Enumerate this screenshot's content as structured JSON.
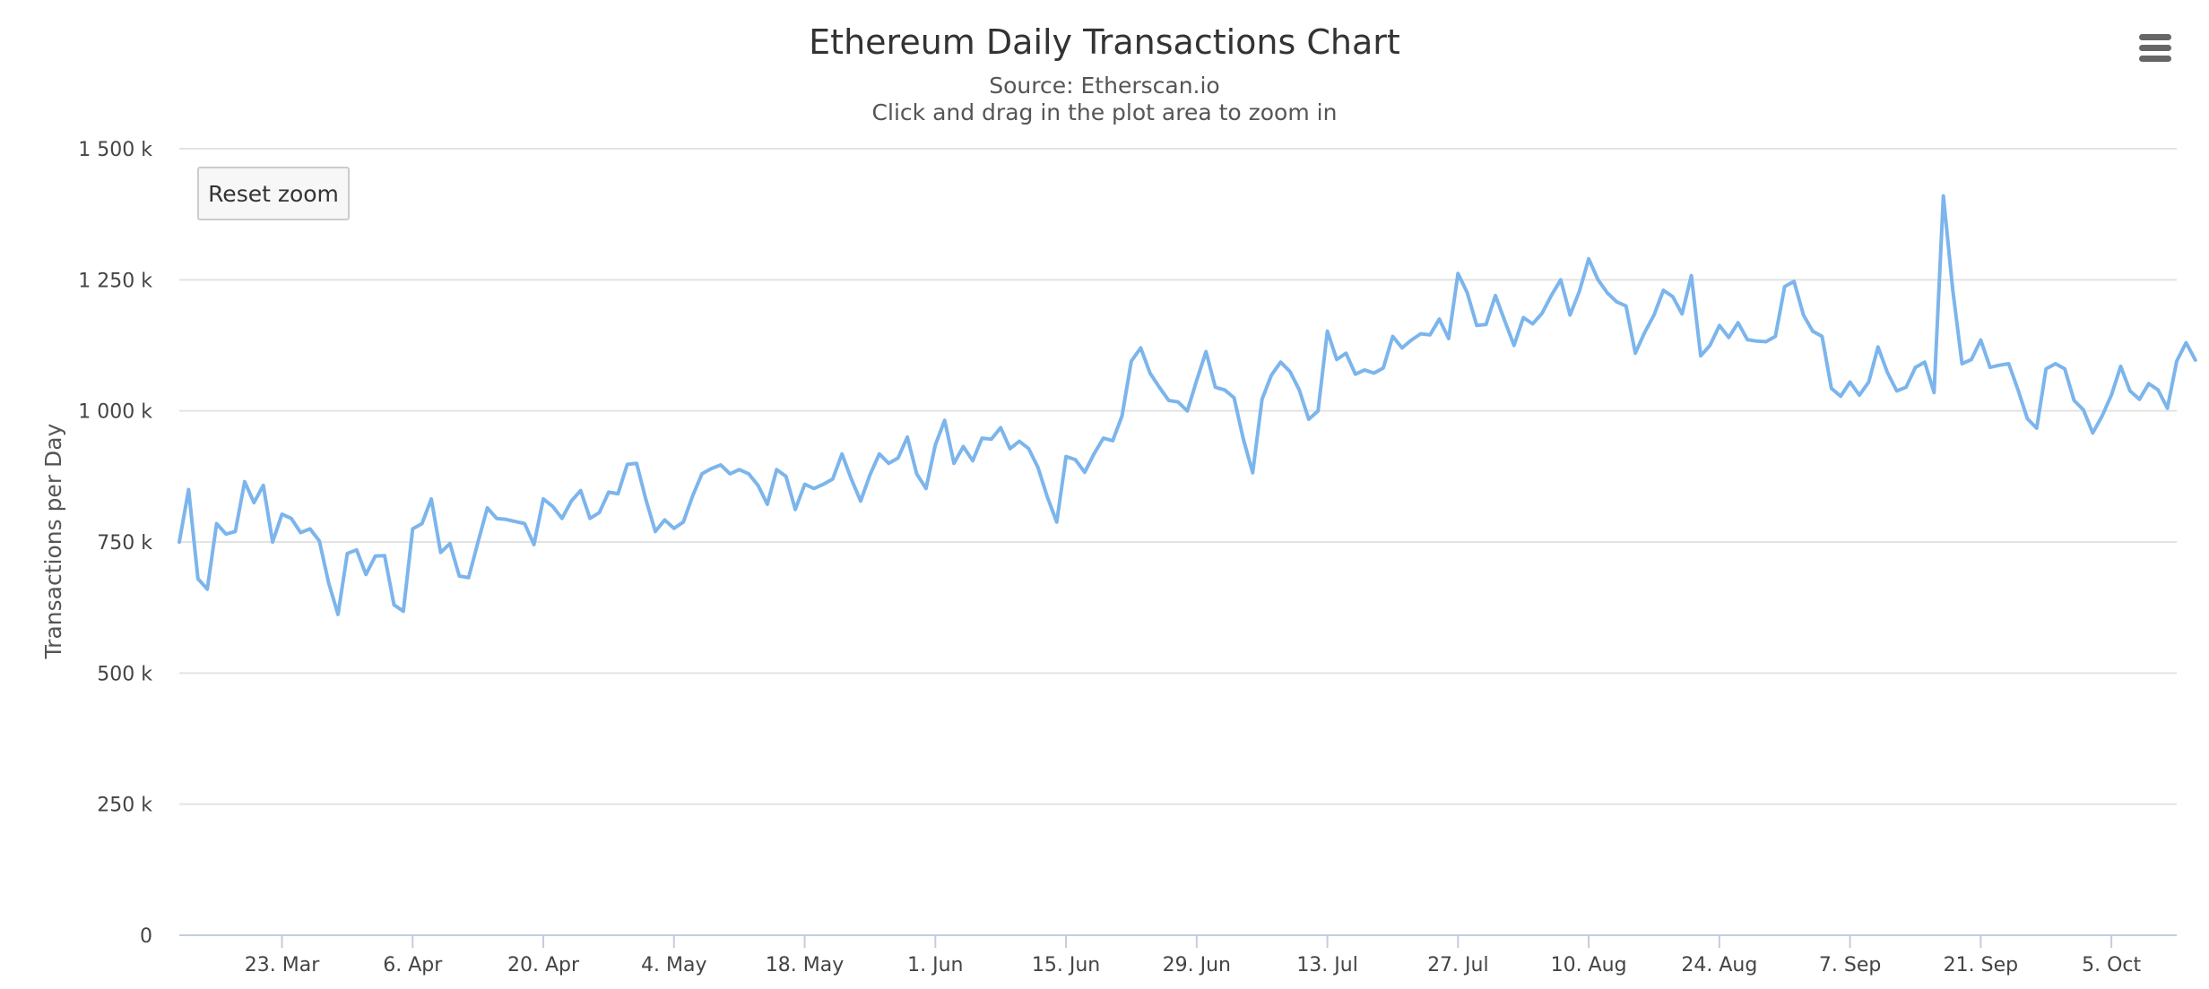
{
  "chart": {
    "title": "Ethereum Daily Transactions Chart",
    "subtitle_source": "Source: Etherscan.io",
    "subtitle_hint": "Click and drag in the plot area to zoom in",
    "reset_zoom_label": "Reset zoom",
    "menu_icon": "hamburger-menu-icon",
    "line_color": "#7cb5ec"
  },
  "chart_data": {
    "type": "line",
    "title": "Ethereum Daily Transactions Chart",
    "subtitle": "Source: Etherscan.io",
    "xlabel": "",
    "ylabel": "Transactions per Day",
    "ylim": [
      0,
      1500000
    ],
    "grid": true,
    "legend": "none",
    "y_ticks": [
      {
        "value": 0,
        "label": "0"
      },
      {
        "value": 250000,
        "label": "250 k"
      },
      {
        "value": 500000,
        "label": "500 k"
      },
      {
        "value": 750000,
        "label": "750 k"
      },
      {
        "value": 1000000,
        "label": "1 000 k"
      },
      {
        "value": 1250000,
        "label": "1 250 k"
      },
      {
        "value": 1500000,
        "label": "1 500 k"
      }
    ],
    "x_ticks": [
      {
        "date": "2018-03-23",
        "label": "23. Mar"
      },
      {
        "date": "2018-04-06",
        "label": "6. Apr"
      },
      {
        "date": "2018-04-20",
        "label": "20. Apr"
      },
      {
        "date": "2018-05-04",
        "label": "4. May"
      },
      {
        "date": "2018-05-18",
        "label": "18. May"
      },
      {
        "date": "2018-06-01",
        "label": "1. Jun"
      },
      {
        "date": "2018-06-15",
        "label": "15. Jun"
      },
      {
        "date": "2018-06-29",
        "label": "29. Jun"
      },
      {
        "date": "2018-07-13",
        "label": "13. Jul"
      },
      {
        "date": "2018-07-27",
        "label": "27. Jul"
      },
      {
        "date": "2018-08-10",
        "label": "10. Aug"
      },
      {
        "date": "2018-08-24",
        "label": "24. Aug"
      },
      {
        "date": "2018-09-07",
        "label": "7. Sep"
      },
      {
        "date": "2018-09-21",
        "label": "21. Sep"
      },
      {
        "date": "2018-10-05",
        "label": "5. Oct"
      }
    ],
    "x_range": [
      "2018-03-12",
      "2018-10-12"
    ],
    "series": [
      {
        "start_date": "2018-03-12",
        "interval_days": 1,
        "values": [
          750000,
          850000,
          680000,
          660000,
          785000,
          765000,
          770000,
          865000,
          825000,
          858000,
          750000,
          803000,
          795000,
          768000,
          775000,
          752000,
          672000,
          612000,
          728000,
          735000,
          688000,
          723000,
          724000,
          630000,
          618000,
          775000,
          785000,
          832000,
          730000,
          747000,
          685000,
          682000,
          750000,
          815000,
          795000,
          793000,
          789000,
          785000,
          745000,
          832000,
          818000,
          795000,
          828000,
          848000,
          795000,
          806000,
          845000,
          842000,
          898000,
          900000,
          830000,
          770000,
          792000,
          776000,
          788000,
          838000,
          880000,
          890000,
          897000,
          880000,
          888000,
          880000,
          858000,
          822000,
          888000,
          875000,
          812000,
          860000,
          852000,
          860000,
          870000,
          918000,
          870000,
          828000,
          878000,
          918000,
          900000,
          910000,
          950000,
          880000,
          852000,
          935000,
          982000,
          900000,
          932000,
          905000,
          948000,
          946000,
          968000,
          928000,
          942000,
          928000,
          892000,
          836000,
          788000,
          913000,
          907000,
          883000,
          918000,
          948000,
          943000,
          990000,
          1095000,
          1120000,
          1072000,
          1045000,
          1020000,
          1017000,
          1000000,
          1058000,
          1113000,
          1045000,
          1040000,
          1025000,
          946000,
          882000,
          1022000,
          1068000,
          1093000,
          1075000,
          1040000,
          984000,
          1000000,
          1152000,
          1098000,
          1110000,
          1070000,
          1078000,
          1072000,
          1082000,
          1142000,
          1120000,
          1135000,
          1147000,
          1145000,
          1175000,
          1138000,
          1262000,
          1225000,
          1163000,
          1165000,
          1220000,
          1172000,
          1125000,
          1178000,
          1166000,
          1186000,
          1220000,
          1250000,
          1183000,
          1228000,
          1290000,
          1250000,
          1225000,
          1208000,
          1200000,
          1110000,
          1150000,
          1183000,
          1230000,
          1218000,
          1185000,
          1258000,
          1105000,
          1125000,
          1163000,
          1140000,
          1168000,
          1136000,
          1133000,
          1132000,
          1142000,
          1237000,
          1247000,
          1183000,
          1152000,
          1142000,
          1043000,
          1028000,
          1055000,
          1030000,
          1055000,
          1122000,
          1073000,
          1038000,
          1045000,
          1083000,
          1093000,
          1035000,
          1410000,
          1232000,
          1090000,
          1098000,
          1135000,
          1083000,
          1087000,
          1090000,
          1040000,
          985000,
          967000,
          1080000,
          1090000,
          1080000,
          1020000,
          1002000,
          958000,
          990000,
          1030000,
          1085000,
          1038000,
          1022000,
          1052000,
          1040000,
          1005000,
          1095000,
          1130000,
          1097000
        ]
      }
    ]
  }
}
